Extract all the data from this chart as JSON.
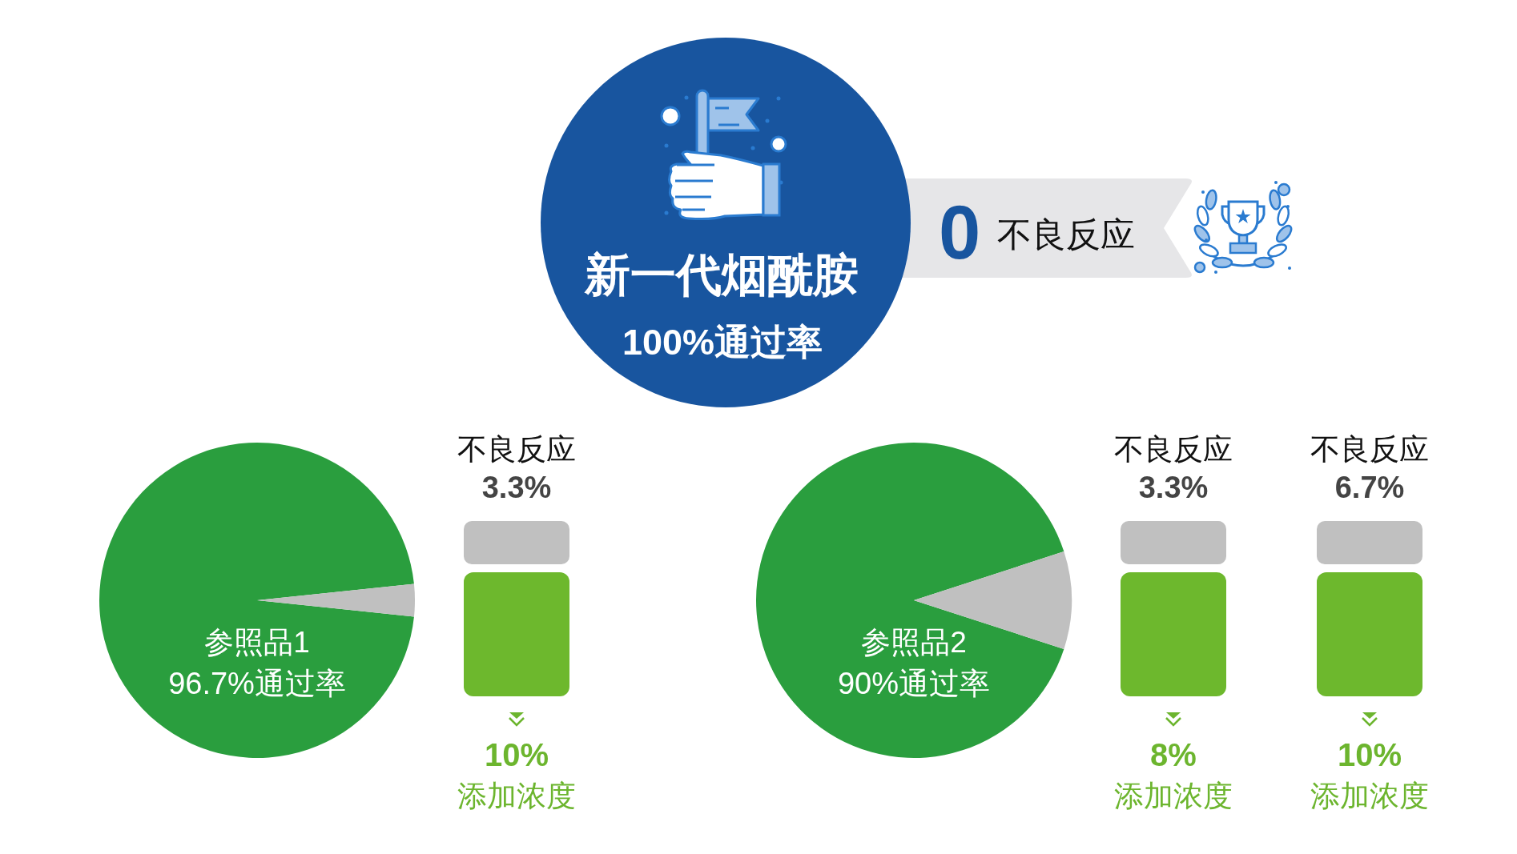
{
  "chart_data": [
    {
      "type": "other",
      "title": "新一代烟酰胺",
      "subtitle": "100%通过率",
      "annotations": [
        "0",
        "不良反应"
      ]
    },
    {
      "type": "pie",
      "categories": [
        "参照品1",
        null
      ],
      "values": [
        96.7,
        3.3
      ],
      "colors": [
        "#2a9e3e",
        "#c0c0c0"
      ],
      "value_labels": [
        "96.7%通过率",
        null
      ],
      "annotations": [
        "不良反应",
        "3.3%",
        "10%",
        "添加浓度"
      ]
    },
    {
      "type": "pie",
      "categories": [
        "参照品2",
        null
      ],
      "values": [
        90,
        10
      ],
      "colors": [
        "#2a9e3e",
        "#c0c0c0"
      ],
      "value_labels": [
        "90%通过率",
        null
      ],
      "annotations": [
        "不良反应",
        "3.3%",
        "8%",
        "添加浓度",
        "不良反应",
        "6.7%",
        "10%",
        "添加浓度"
      ]
    }
  ]
}
